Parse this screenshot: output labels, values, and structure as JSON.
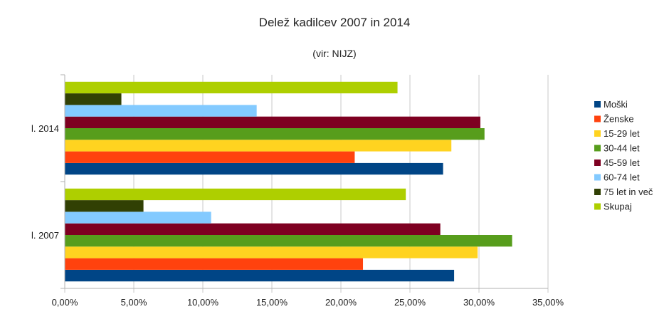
{
  "chart_data": {
    "type": "bar",
    "orientation": "horizontal",
    "title": "Delež kadilcev 2007 in 2014",
    "subtitle": "(vir: NIJZ)",
    "categories": [
      "l. 2014",
      "l. 2007"
    ],
    "series": [
      {
        "name": "Moški",
        "color": "#004586",
        "values": [
          27.4,
          28.2
        ]
      },
      {
        "name": "Ženske",
        "color": "#ff420e",
        "values": [
          21.0,
          21.6
        ]
      },
      {
        "name": "15-29 let",
        "color": "#ffd320",
        "values": [
          28.0,
          29.9
        ]
      },
      {
        "name": "30-44 let",
        "color": "#579d1c",
        "values": [
          30.4,
          32.4
        ]
      },
      {
        "name": "45-59 let",
        "color": "#7e0021",
        "values": [
          30.1,
          27.2
        ]
      },
      {
        "name": "60-74 let",
        "color": "#83caff",
        "values": [
          13.9,
          10.6
        ]
      },
      {
        "name": "75 let in več",
        "color": "#314004",
        "values": [
          4.1,
          5.7
        ]
      },
      {
        "name": "Skupaj",
        "color": "#aecf00",
        "values": [
          24.1,
          24.7
        ]
      }
    ],
    "xlim": [
      0,
      35
    ],
    "xticks": [
      "0,00%",
      "5,00%",
      "10,00%",
      "15,00%",
      "20,00%",
      "25,00%",
      "30,00%",
      "35,00%"
    ],
    "grid": true,
    "legend": "right"
  }
}
